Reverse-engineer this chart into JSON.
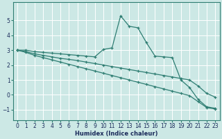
{
  "xlabel": "Humidex (Indice chaleur)",
  "bg_color": "#cce8e5",
  "grid_color": "#ffffff",
  "line_color": "#2e7d72",
  "xlim": [
    -0.5,
    23.5
  ],
  "ylim": [
    -1.7,
    6.2
  ],
  "xticks": [
    0,
    1,
    2,
    3,
    4,
    5,
    6,
    7,
    8,
    9,
    10,
    11,
    12,
    13,
    14,
    15,
    16,
    17,
    18,
    19,
    20,
    21,
    22,
    23
  ],
  "yticks": [
    -1,
    0,
    1,
    2,
    3,
    4,
    5
  ],
  "line1_x": [
    0,
    1,
    2,
    3,
    4,
    5,
    6,
    7,
    8,
    9,
    10,
    11,
    12,
    13,
    14,
    15,
    16,
    17,
    18,
    19,
    20,
    21,
    22,
    23
  ],
  "line1_y": [
    3.0,
    3.0,
    2.9,
    2.85,
    2.8,
    2.75,
    2.7,
    2.65,
    2.6,
    2.55,
    3.05,
    3.15,
    5.3,
    4.6,
    4.5,
    3.5,
    2.6,
    2.55,
    2.5,
    1.0,
    0.5,
    -0.3,
    -0.8,
    -0.9
  ],
  "line2_x": [
    0,
    1,
    2,
    3,
    4,
    5,
    6,
    7,
    8,
    9,
    10,
    11,
    12,
    13,
    14,
    15,
    16,
    17,
    18,
    19,
    20,
    21,
    22,
    23
  ],
  "line2_y": [
    3.0,
    2.9,
    2.75,
    2.65,
    2.55,
    2.45,
    2.38,
    2.3,
    2.2,
    2.1,
    2.0,
    1.9,
    1.8,
    1.7,
    1.6,
    1.5,
    1.4,
    1.3,
    1.2,
    1.1,
    1.0,
    0.6,
    0.1,
    -0.15
  ],
  "line3_x": [
    0,
    1,
    2,
    3,
    4,
    5,
    6,
    7,
    8,
    9,
    10,
    11,
    12,
    13,
    14,
    15,
    16,
    17,
    18,
    19,
    20,
    21,
    22,
    23
  ],
  "line3_y": [
    3.0,
    2.85,
    2.65,
    2.5,
    2.35,
    2.2,
    2.05,
    1.9,
    1.75,
    1.6,
    1.45,
    1.3,
    1.15,
    1.0,
    0.85,
    0.7,
    0.55,
    0.4,
    0.25,
    0.1,
    -0.05,
    -0.45,
    -0.85,
    -0.95
  ],
  "tick_fontsize": 5.5,
  "xlabel_fontsize": 6.0
}
